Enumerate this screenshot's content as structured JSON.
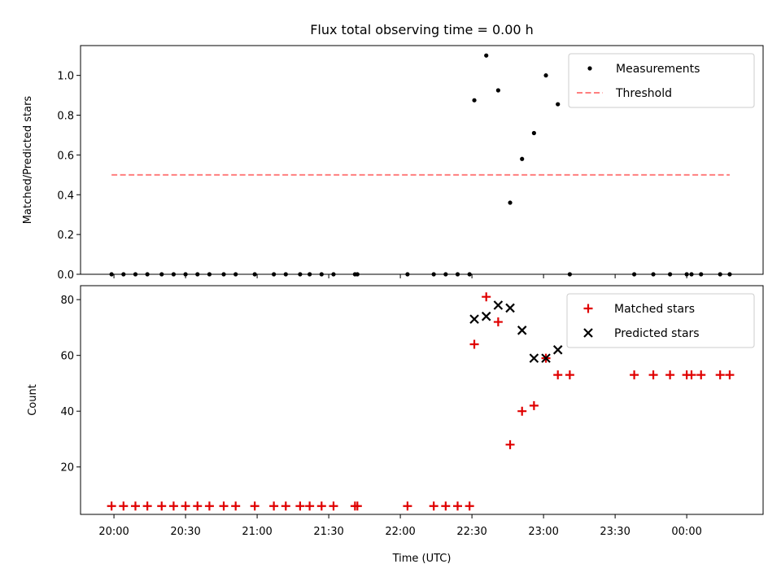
{
  "chart_data": {
    "type": "scatter",
    "title": "Flux total observing time = 0.00 h",
    "xlabel": "Time (UTC)",
    "x_tick_labels": [
      "20:00",
      "20:30",
      "21:00",
      "21:30",
      "22:00",
      "22:30",
      "23:00",
      "23:30",
      "00:00"
    ],
    "x_ticks_minutes": [
      0,
      30,
      60,
      90,
      120,
      150,
      180,
      210,
      240
    ],
    "xlim_minutes": [
      -14,
      272
    ],
    "panels": [
      {
        "ylabel": "Matched/Predicted stars",
        "ylim": [
          0,
          1.15
        ],
        "y_ticks": [
          0.0,
          0.2,
          0.4,
          0.6,
          0.8,
          1.0
        ],
        "y_tick_labels": [
          "0.0",
          "0.2",
          "0.4",
          "0.6",
          "0.8",
          "1.0"
        ],
        "legend": "top-right",
        "series": [
          {
            "name": "Measurements",
            "marker": "dot",
            "color": "#000000",
            "points": [
              [
                -1,
                0
              ],
              [
                4,
                0
              ],
              [
                9,
                0
              ],
              [
                14,
                0
              ],
              [
                20,
                0
              ],
              [
                25,
                0
              ],
              [
                30,
                0
              ],
              [
                35,
                0
              ],
              [
                40,
                0
              ],
              [
                46,
                0
              ],
              [
                51,
                0
              ],
              [
                59,
                0
              ],
              [
                67,
                0
              ],
              [
                72,
                0
              ],
              [
                78,
                0
              ],
              [
                82,
                0
              ],
              [
                87,
                0
              ],
              [
                92,
                0
              ],
              [
                101,
                0
              ],
              [
                102,
                0
              ],
              [
                123,
                0
              ],
              [
                134,
                0
              ],
              [
                139,
                0
              ],
              [
                144,
                0
              ],
              [
                149,
                0
              ],
              [
                151,
                0.875
              ],
              [
                156,
                1.1
              ],
              [
                161,
                0.925
              ],
              [
                166,
                0.36
              ],
              [
                171,
                0.58
              ],
              [
                176,
                0.71
              ],
              [
                181,
                1.0
              ],
              [
                186,
                0.855
              ],
              [
                191,
                0
              ],
              [
                218,
                0
              ],
              [
                226,
                0
              ],
              [
                233,
                0
              ],
              [
                240,
                0
              ],
              [
                242,
                0
              ],
              [
                246,
                0
              ],
              [
                254,
                0
              ],
              [
                258,
                0
              ]
            ]
          },
          {
            "name": "Threshold",
            "style": "dashed",
            "color": "#ff7f7f",
            "points": [
              [
                -1,
                0.5
              ],
              [
                258,
                0.5
              ]
            ]
          }
        ]
      },
      {
        "ylabel": "Count",
        "ylim": [
          3,
          85
        ],
        "y_ticks": [
          20,
          40,
          60,
          80
        ],
        "y_tick_labels": [
          "20",
          "40",
          "60",
          "80"
        ],
        "legend": "top-right",
        "series": [
          {
            "name": "Matched stars",
            "marker": "plus",
            "color": "#e00000",
            "points": [
              [
                -1,
                6
              ],
              [
                4,
                6
              ],
              [
                9,
                6
              ],
              [
                14,
                6
              ],
              [
                20,
                6
              ],
              [
                25,
                6
              ],
              [
                30,
                6
              ],
              [
                35,
                6
              ],
              [
                40,
                6
              ],
              [
                46,
                6
              ],
              [
                51,
                6
              ],
              [
                59,
                6
              ],
              [
                67,
                6
              ],
              [
                72,
                6
              ],
              [
                78,
                6
              ],
              [
                82,
                6
              ],
              [
                87,
                6
              ],
              [
                92,
                6
              ],
              [
                101,
                6
              ],
              [
                102,
                6
              ],
              [
                123,
                6
              ],
              [
                134,
                6
              ],
              [
                139,
                6
              ],
              [
                144,
                6
              ],
              [
                149,
                6
              ],
              [
                151,
                64
              ],
              [
                156,
                81
              ],
              [
                161,
                72
              ],
              [
                166,
                28
              ],
              [
                171,
                40
              ],
              [
                176,
                42
              ],
              [
                181,
                59
              ],
              [
                186,
                53
              ],
              [
                191,
                53
              ],
              [
                218,
                53
              ],
              [
                226,
                53
              ],
              [
                233,
                53
              ],
              [
                240,
                53
              ],
              [
                242,
                53
              ],
              [
                246,
                53
              ],
              [
                254,
                53
              ],
              [
                258,
                53
              ]
            ]
          },
          {
            "name": "Predicted stars",
            "marker": "x",
            "color": "#000000",
            "points": [
              [
                151,
                73
              ],
              [
                156,
                74
              ],
              [
                161,
                78
              ],
              [
                166,
                77
              ],
              [
                171,
                69
              ],
              [
                176,
                59
              ],
              [
                181,
                59
              ],
              [
                186,
                62
              ]
            ]
          }
        ]
      }
    ]
  }
}
